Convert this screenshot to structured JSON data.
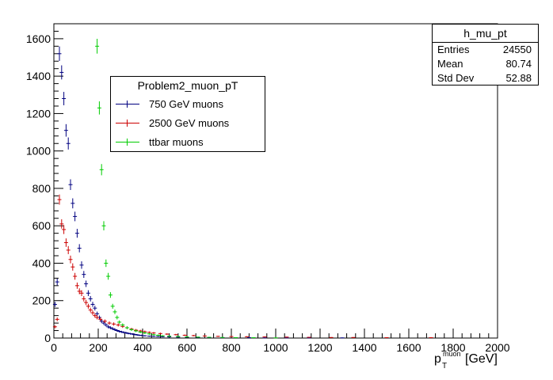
{
  "chart_data": {
    "type": "histogram",
    "xlabel": "[GeV]",
    "xlabel_symbol": "p",
    "xlabel_superscript": "muon",
    "xlabel_subscript": "T",
    "xlim": [
      0,
      2000
    ],
    "ylim": [
      0,
      1680
    ],
    "x_ticks": [
      0,
      200,
      400,
      600,
      800,
      1000,
      1200,
      1400,
      1600,
      1800,
      2000
    ],
    "y_ticks": [
      0,
      200,
      400,
      600,
      800,
      1000,
      1200,
      1400,
      1600
    ],
    "legend": {
      "title": "Problem2_muon_pT",
      "position": "upper-left",
      "entries": [
        "750 GeV muons",
        "2500 GeV muons",
        "ttbar muons"
      ]
    },
    "stats": {
      "name": "h_mu_pt",
      "rows": [
        {
          "label": "Entries",
          "value": "24550"
        },
        {
          "label": "Mean",
          "value": "80.74"
        },
        {
          "label": "Std Dev",
          "value": "52.88"
        }
      ]
    },
    "series": [
      {
        "name": "750 GeV muons",
        "color": "#000080",
        "x": [
          5,
          15,
          25,
          35,
          45,
          55,
          65,
          75,
          85,
          95,
          105,
          115,
          125,
          135,
          145,
          155,
          165,
          175,
          185,
          195,
          205,
          215,
          225,
          235,
          245,
          255,
          265,
          275,
          285,
          295,
          305,
          315,
          325,
          335,
          345,
          355,
          365,
          375,
          385,
          395,
          410,
          430,
          450,
          470,
          490,
          520,
          560,
          600,
          650,
          700,
          760,
          820,
          880,
          950,
          1050,
          1150,
          1300
        ],
        "y": [
          180,
          300,
          1520,
          1420,
          1280,
          1110,
          1040,
          820,
          720,
          650,
          560,
          480,
          390,
          340,
          290,
          240,
          210,
          180,
          160,
          130,
          110,
          90,
          80,
          70,
          60,
          55,
          50,
          45,
          40,
          36,
          33,
          30,
          28,
          25,
          23,
          21,
          19,
          17,
          15,
          14,
          12,
          10,
          9,
          8,
          7,
          6,
          5,
          4,
          3,
          3,
          2,
          2,
          2,
          1,
          1,
          1,
          1
        ]
      },
      {
        "name": "2500 GeV muons",
        "color": "#cc0000",
        "x": [
          5,
          15,
          25,
          35,
          45,
          55,
          65,
          75,
          85,
          95,
          105,
          115,
          125,
          135,
          145,
          155,
          165,
          175,
          185,
          195,
          210,
          230,
          250,
          270,
          290,
          310,
          330,
          350,
          370,
          390,
          410,
          430,
          450,
          480,
          510,
          550,
          590,
          630,
          680,
          740,
          800,
          870,
          950,
          1050,
          1150,
          1250,
          1350,
          1500,
          1700
        ],
        "y": [
          60,
          100,
          740,
          610,
          580,
          510,
          470,
          420,
          380,
          330,
          280,
          250,
          240,
          210,
          190,
          170,
          150,
          135,
          120,
          110,
          100,
          90,
          80,
          75,
          70,
          62,
          55,
          48,
          42,
          38,
          34,
          30,
          27,
          24,
          21,
          18,
          15,
          13,
          11,
          9,
          8,
          7,
          6,
          5,
          4,
          3,
          3,
          2,
          2
        ]
      },
      {
        "name": "ttbar muons",
        "color": "#00cc00",
        "x": [
          195,
          205,
          215,
          225,
          235,
          245,
          255,
          265,
          275,
          285,
          295,
          310,
          330,
          350,
          370,
          390,
          410,
          430,
          450,
          470,
          490,
          520,
          560,
          600,
          650,
          700,
          760,
          820,
          900,
          1000
        ],
        "y": [
          1560,
          1230,
          900,
          600,
          400,
          330,
          230,
          170,
          140,
          110,
          85,
          70,
          55,
          45,
          38,
          32,
          27,
          22,
          18,
          15,
          12,
          10,
          8,
          6,
          5,
          4,
          3,
          2,
          2,
          1
        ]
      }
    ]
  }
}
